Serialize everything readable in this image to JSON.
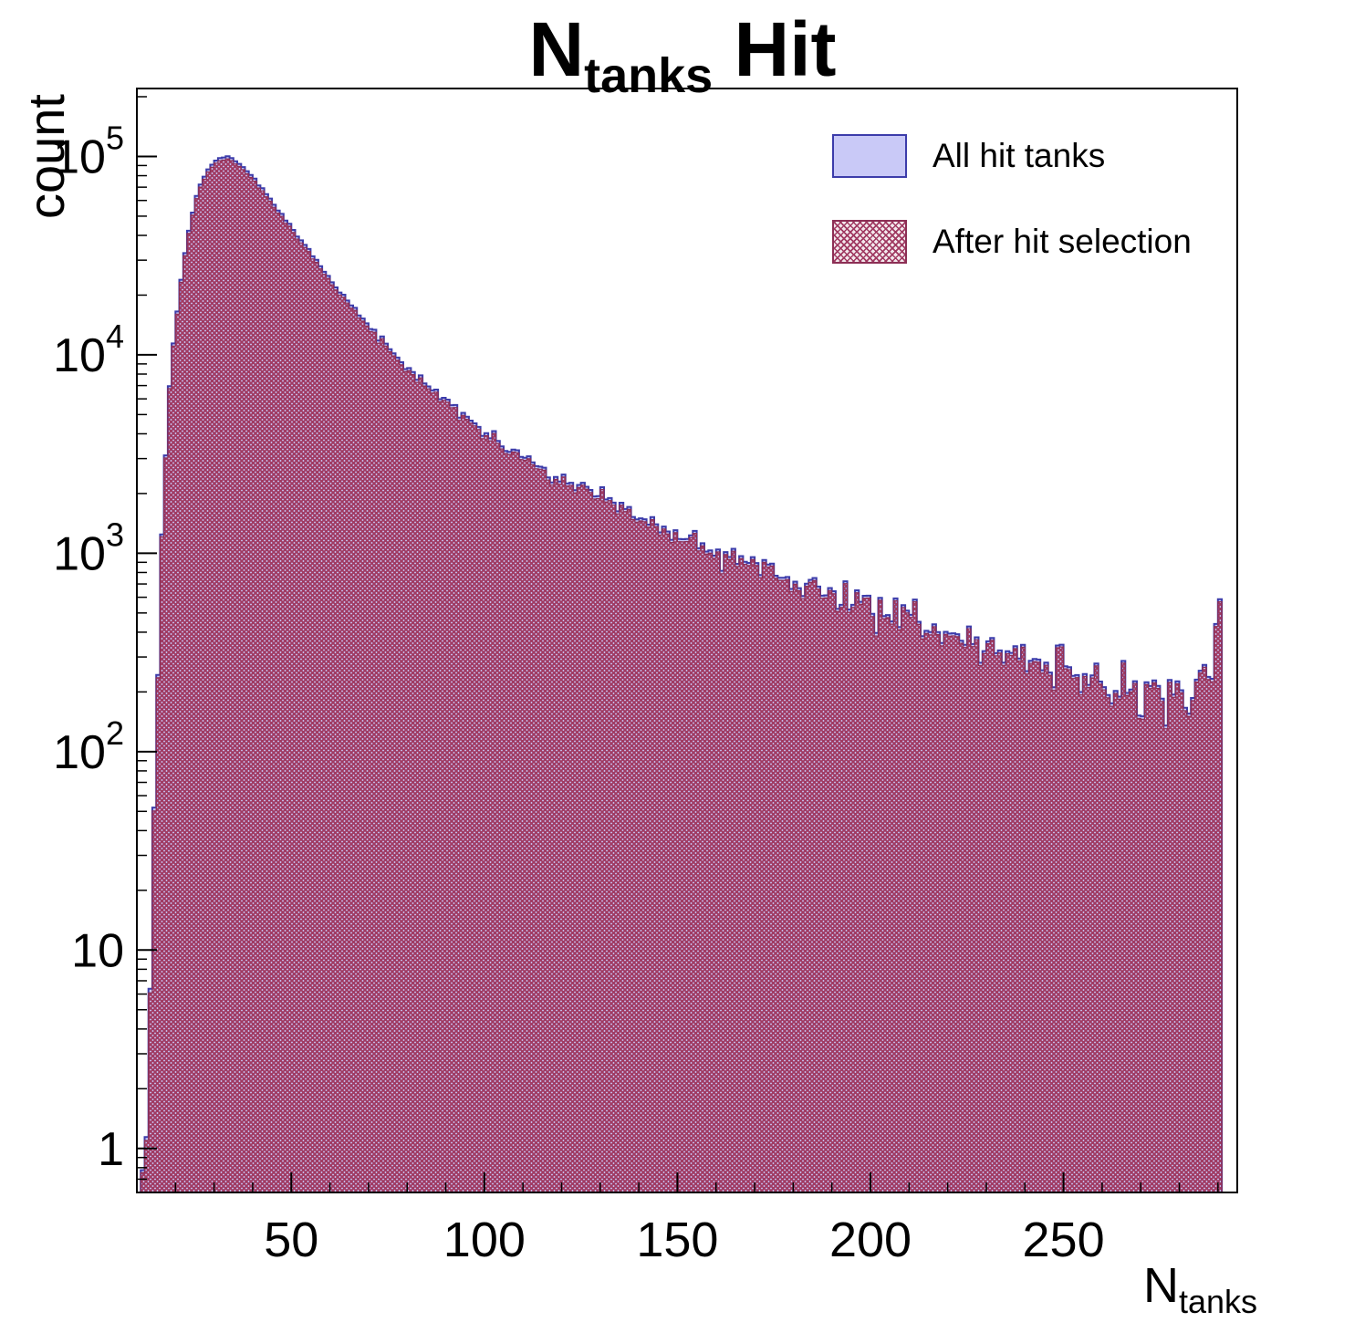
{
  "title": {
    "prefix": "N",
    "sub": "tanks",
    "suffix": " Hit"
  },
  "axes": {
    "y_label": "count",
    "x_label_prefix": "N",
    "x_label_sub": "tanks"
  },
  "legend": {
    "position": "top-right",
    "items": [
      {
        "label": "All hit tanks"
      },
      {
        "label": "After hit selection"
      }
    ]
  },
  "chart_data": {
    "type": "bar",
    "title": "N_{tanks} Hit",
    "xlabel": "N_{tanks}",
    "ylabel": "count",
    "log_y": true,
    "grid": false,
    "legend_position": "top-right",
    "xlim": [
      10,
      295
    ],
    "ylim": [
      0.6,
      220000
    ],
    "bin_width": 1,
    "xticks": [
      50,
      100,
      150,
      200,
      250
    ],
    "x_minor_step": 10,
    "yticks": [
      {
        "value": 1,
        "base": "1",
        "exp": ""
      },
      {
        "value": 10,
        "base": "10",
        "exp": ""
      },
      {
        "value": 100,
        "base": "10",
        "exp": "2"
      },
      {
        "value": 1000,
        "base": "10",
        "exp": "3"
      },
      {
        "value": 10000,
        "base": "10",
        "exp": "4"
      },
      {
        "value": 100000,
        "base": "10",
        "exp": "5"
      }
    ],
    "series": [
      {
        "name": "All hit tanks",
        "fill": "#c9c9f7",
        "edge": "#3c3caa",
        "anchors_x": [
          11,
          12,
          13,
          14,
          15,
          16,
          17,
          18,
          19,
          20,
          22,
          24,
          26,
          28,
          30,
          32,
          33,
          34,
          36,
          38,
          40,
          43,
          46,
          50,
          55,
          60,
          65,
          70,
          75,
          80,
          85,
          90,
          95,
          100,
          110,
          120,
          130,
          140,
          150,
          160,
          170,
          180,
          190,
          200,
          210,
          220,
          230,
          240,
          250,
          255,
          260,
          265,
          270,
          275,
          280,
          284,
          287,
          288,
          289,
          290
        ],
        "anchors_y": [
          0.8,
          1,
          3,
          20,
          120,
          600,
          2000,
          5000,
          9000,
          14000,
          28000,
          48000,
          68000,
          84000,
          94000,
          99000,
          100000,
          99000,
          94000,
          87000,
          79000,
          67000,
          56000,
          44000,
          32500,
          24000,
          18200,
          14000,
          11000,
          8800,
          7100,
          5900,
          4900,
          4100,
          3000,
          2350,
          1850,
          1500,
          1230,
          1030,
          870,
          740,
          630,
          545,
          470,
          405,
          350,
          300,
          260,
          240,
          225,
          210,
          200,
          195,
          190,
          195,
          230,
          280,
          330,
          560
        ]
      },
      {
        "name": "After hit selection",
        "fill": "none",
        "hatch_color": "#a03a62",
        "edge": "#8c2f55",
        "anchors_x": [
          11,
          12,
          13,
          14,
          15,
          16,
          17,
          18,
          19,
          20,
          22,
          24,
          26,
          28,
          30,
          32,
          33,
          34,
          36,
          38,
          40,
          43,
          46,
          50,
          55,
          60,
          65,
          70,
          75,
          80,
          85,
          90,
          95,
          100,
          110,
          120,
          130,
          140,
          150,
          160,
          170,
          180,
          190,
          200,
          210,
          220,
          230,
          240,
          250,
          255,
          260,
          265,
          270,
          275,
          280,
          284,
          287,
          288,
          289,
          290
        ],
        "anchors_y": [
          0.78,
          0.97,
          2.9,
          19,
          116,
          582,
          1940,
          4850,
          8730,
          13580,
          27160,
          46560,
          65960,
          81480,
          91180,
          96030,
          97000,
          96030,
          91180,
          84390,
          76630,
          64990,
          54320,
          42680,
          31525,
          23280,
          17654,
          13580,
          10670,
          8536,
          6887,
          5723,
          4753,
          3977,
          2910,
          2280,
          1795,
          1455,
          1193,
          999,
          844,
          718,
          611,
          529,
          456,
          393,
          340,
          291,
          252,
          233,
          218,
          204,
          194,
          189,
          184,
          189,
          223,
          272,
          320,
          543
        ]
      }
    ]
  }
}
